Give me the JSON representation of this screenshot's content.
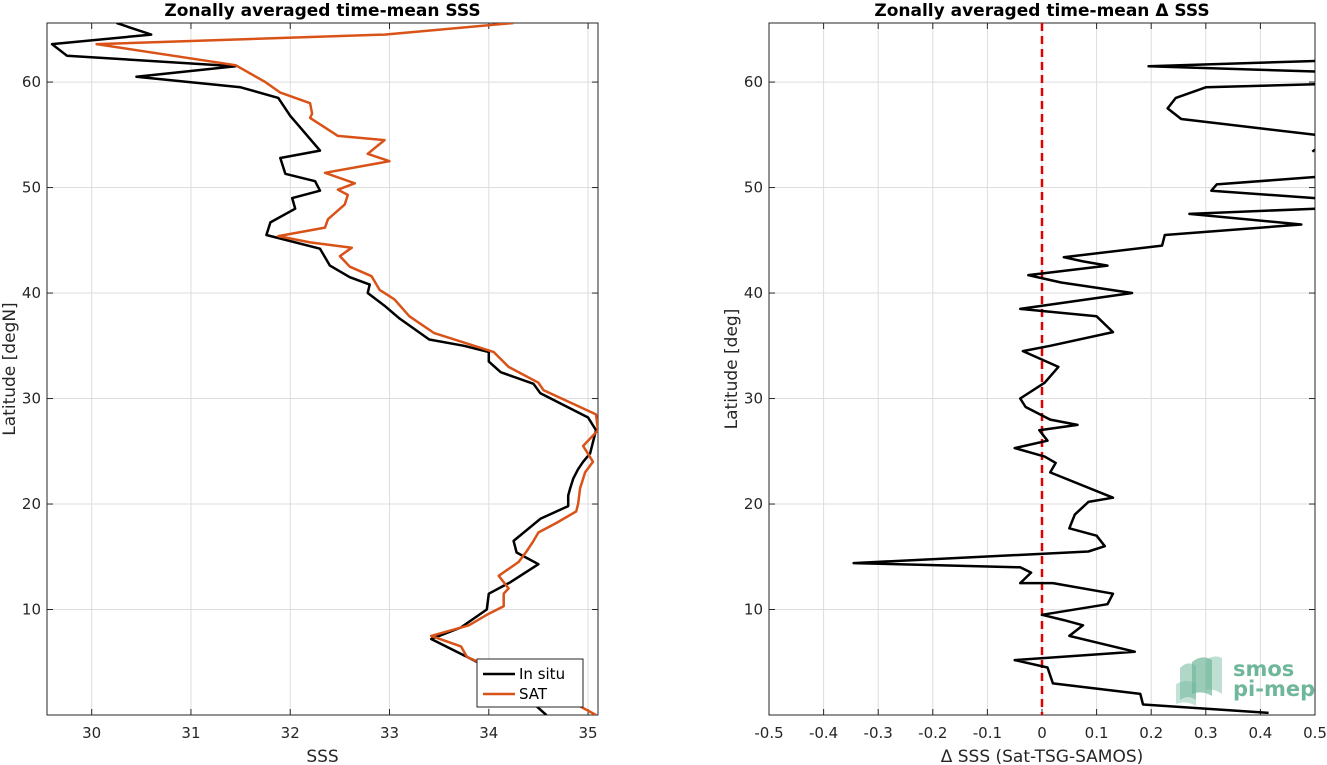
{
  "colors": {
    "in_situ": "#000000",
    "sat": "#D95319",
    "zero_line": "#E00000",
    "grid": "#DDDDDD",
    "axes": "#262626",
    "logo": "#6FB79A"
  },
  "logo": {
    "line1": "smos",
    "line2": "pi-mep"
  },
  "chart_data": [
    {
      "type": "line",
      "title": "Zonally averaged time-mean SSS",
      "xlabel": "SSS",
      "ylabel": "Latitude [degN]",
      "xlim": [
        29.55,
        35.1
      ],
      "ylim": [
        0,
        65.6
      ],
      "xticks": [
        30,
        31,
        32,
        33,
        34,
        35
      ],
      "yticks": [
        10,
        20,
        30,
        40,
        50,
        60
      ],
      "grid": true,
      "legend": {
        "placement": "bottom-right",
        "entries": [
          "In situ",
          "SAT"
        ]
      },
      "series": [
        {
          "name": "In situ",
          "color_key": "in_situ",
          "points": [
            [
              34.58,
              0.0
            ],
            [
              34.1,
              4.0
            ],
            [
              33.42,
              7.2
            ],
            [
              33.72,
              8.3
            ],
            [
              33.98,
              10.0
            ],
            [
              34.0,
              11.5
            ],
            [
              34.22,
              12.6
            ],
            [
              34.5,
              14.3
            ],
            [
              34.28,
              15.4
            ],
            [
              34.25,
              16.5
            ],
            [
              34.52,
              18.6
            ],
            [
              34.8,
              19.8
            ],
            [
              34.8,
              20.8
            ],
            [
              34.82,
              21.5
            ],
            [
              34.85,
              22.4
            ],
            [
              34.9,
              23.3
            ],
            [
              34.95,
              24.0
            ],
            [
              35.02,
              24.8
            ],
            [
              35.08,
              27.0
            ],
            [
              35.0,
              28.2
            ],
            [
              34.52,
              30.5
            ],
            [
              34.45,
              31.4
            ],
            [
              34.12,
              32.5
            ],
            [
              34.0,
              33.5
            ],
            [
              34.0,
              34.4
            ],
            [
              33.75,
              35.0
            ],
            [
              33.4,
              35.6
            ],
            [
              33.1,
              37.6
            ],
            [
              32.95,
              38.8
            ],
            [
              32.78,
              40.0
            ],
            [
              32.8,
              40.8
            ],
            [
              32.6,
              41.5
            ],
            [
              32.4,
              42.6
            ],
            [
              32.3,
              44.2
            ],
            [
              31.76,
              45.5
            ],
            [
              31.8,
              46.7
            ],
            [
              32.05,
              48.0
            ],
            [
              32.02,
              49.0
            ],
            [
              32.3,
              49.7
            ],
            [
              32.25,
              50.6
            ],
            [
              31.95,
              51.3
            ],
            [
              31.9,
              52.8
            ],
            [
              32.3,
              53.5
            ],
            [
              32.1,
              55.7
            ],
            [
              32.0,
              56.8
            ],
            [
              31.88,
              58.5
            ],
            [
              31.5,
              59.5
            ],
            [
              30.45,
              60.5
            ],
            [
              31.45,
              61.5
            ],
            [
              29.75,
              62.5
            ],
            [
              29.6,
              63.6
            ],
            [
              30.6,
              64.5
            ],
            [
              30.25,
              65.6
            ]
          ]
        },
        {
          "name": "SAT",
          "color_key": "sat",
          "points": [
            [
              35.08,
              0.0
            ],
            [
              34.65,
              2.2
            ],
            [
              34.2,
              3.8
            ],
            [
              33.78,
              5.5
            ],
            [
              33.72,
              6.5
            ],
            [
              33.42,
              7.5
            ],
            [
              33.8,
              8.5
            ],
            [
              34.0,
              9.6
            ],
            [
              34.15,
              10.3
            ],
            [
              34.15,
              11.5
            ],
            [
              34.2,
              12.0
            ],
            [
              34.1,
              13.2
            ],
            [
              34.3,
              14.5
            ],
            [
              34.38,
              15.5
            ],
            [
              34.45,
              16.5
            ],
            [
              34.5,
              17.3
            ],
            [
              34.68,
              18.2
            ],
            [
              34.88,
              19.3
            ],
            [
              34.9,
              20.0
            ],
            [
              34.92,
              21.5
            ],
            [
              34.97,
              23.0
            ],
            [
              35.05,
              24.0
            ],
            [
              34.95,
              25.5
            ],
            [
              35.1,
              27.0
            ],
            [
              35.08,
              28.5
            ],
            [
              34.55,
              30.8
            ],
            [
              34.5,
              31.5
            ],
            [
              34.2,
              33.0
            ],
            [
              34.05,
              34.4
            ],
            [
              33.45,
              36.2
            ],
            [
              33.2,
              37.8
            ],
            [
              33.05,
              39.4
            ],
            [
              32.9,
              40.3
            ],
            [
              32.82,
              41.6
            ],
            [
              32.6,
              42.5
            ],
            [
              32.5,
              43.5
            ],
            [
              32.62,
              44.3
            ],
            [
              32.2,
              44.8
            ],
            [
              31.88,
              45.4
            ],
            [
              32.35,
              46.2
            ],
            [
              32.38,
              47.0
            ],
            [
              32.55,
              48.4
            ],
            [
              32.58,
              49.3
            ],
            [
              32.48,
              49.8
            ],
            [
              32.65,
              50.4
            ],
            [
              32.35,
              51.4
            ],
            [
              33.0,
              52.5
            ],
            [
              32.78,
              53.2
            ],
            [
              32.95,
              54.5
            ],
            [
              32.48,
              54.9
            ],
            [
              32.2,
              56.6
            ],
            [
              32.22,
              57.0
            ],
            [
              32.2,
              58.0
            ],
            [
              31.9,
              59.0
            ],
            [
              31.75,
              60.0
            ],
            [
              31.45,
              61.6
            ],
            [
              30.05,
              63.6
            ],
            [
              32.95,
              64.5
            ],
            [
              34.25,
              65.6
            ]
          ]
        }
      ]
    },
    {
      "type": "line",
      "title": "Zonally averaged time-mean Δ SSS",
      "xlabel": "Δ SSS (Sat-TSG-SAMOS)",
      "ylabel": "Latitude [deg]",
      "xlim": [
        -0.5,
        0.5
      ],
      "ylim": [
        0,
        65.6
      ],
      "xticks": [
        -0.5,
        -0.4,
        -0.3,
        -0.2,
        -0.1,
        0,
        0.1,
        0.2,
        0.3,
        0.4,
        0.5
      ],
      "xtick_labels": [
        "-0.5",
        "-0.4",
        "-0.3",
        "-0.2",
        "-0.1",
        "0",
        "0.1",
        "0.2",
        "0.3",
        "0.4",
        "0.5"
      ],
      "yticks": [
        10,
        20,
        30,
        40,
        50,
        60
      ],
      "grid": true,
      "reference_line": {
        "x": 0,
        "style": "dashed",
        "color_key": "zero_line"
      },
      "series": [
        {
          "color_key": "in_situ",
          "segments": [
            [
              [
                0.415,
                0.2
              ],
              [
                0.185,
                1.0
              ],
              [
                0.18,
                2.0
              ],
              [
                0.02,
                3.0
              ],
              [
                0.01,
                4.5
              ],
              [
                -0.05,
                5.2
              ],
              [
                0.17,
                6.0
              ],
              [
                0.05,
                7.5
              ],
              [
                0.075,
                8.5
              ],
              [
                0.04,
                9.0
              ],
              [
                0.0,
                9.5
              ],
              [
                0.12,
                10.5
              ],
              [
                0.13,
                11.5
              ],
              [
                0.02,
                12.5
              ],
              [
                -0.04,
                12.5
              ],
              [
                -0.02,
                13.5
              ],
              [
                -0.04,
                14.0
              ],
              [
                -0.345,
                14.4
              ],
              [
                0.085,
                15.5
              ],
              [
                0.115,
                16.0
              ],
              [
                0.1,
                17.0
              ],
              [
                0.05,
                17.7
              ],
              [
                0.06,
                19.0
              ],
              [
                0.085,
                20.2
              ],
              [
                0.13,
                20.6
              ],
              [
                0.015,
                23.0
              ],
              [
                0.025,
                23.9
              ],
              [
                0.005,
                24.5
              ],
              [
                -0.05,
                25.3
              ],
              [
                0.01,
                26.0
              ],
              [
                -0.005,
                27.0
              ],
              [
                0.065,
                27.5
              ],
              [
                0.015,
                28.0
              ],
              [
                -0.03,
                29.2
              ],
              [
                -0.04,
                30.0
              ],
              [
                0.005,
                31.5
              ],
              [
                0.03,
                33.0
              ],
              [
                -0.035,
                34.5
              ],
              [
                0.015,
                35.0
              ],
              [
                0.13,
                36.3
              ],
              [
                0.1,
                37.8
              ],
              [
                -0.04,
                38.5
              ],
              [
                0.165,
                40.0
              ],
              [
                0.035,
                41.0
              ],
              [
                -0.025,
                41.7
              ],
              [
                0.12,
                42.6
              ],
              [
                0.075,
                43.0
              ],
              [
                0.04,
                43.4
              ],
              [
                0.22,
                44.5
              ],
              [
                0.225,
                45.5
              ],
              [
                0.475,
                46.5
              ],
              [
                0.27,
                47.5
              ],
              [
                0.5,
                48.0
              ]
            ],
            [
              [
                0.5,
                49.0
              ],
              [
                0.31,
                49.7
              ],
              [
                0.32,
                50.3
              ],
              [
                0.5,
                51.0
              ]
            ],
            [
              [
                0.495,
                53.4
              ],
              [
                0.5,
                53.6
              ]
            ],
            [
              [
                0.5,
                55.0
              ],
              [
                0.255,
                56.5
              ],
              [
                0.23,
                57.5
              ],
              [
                0.245,
                58.5
              ],
              [
                0.3,
                59.5
              ],
              [
                0.5,
                59.8
              ]
            ],
            [
              [
                0.5,
                61.0
              ],
              [
                0.195,
                61.5
              ],
              [
                0.5,
                62.0
              ]
            ]
          ]
        }
      ]
    }
  ]
}
